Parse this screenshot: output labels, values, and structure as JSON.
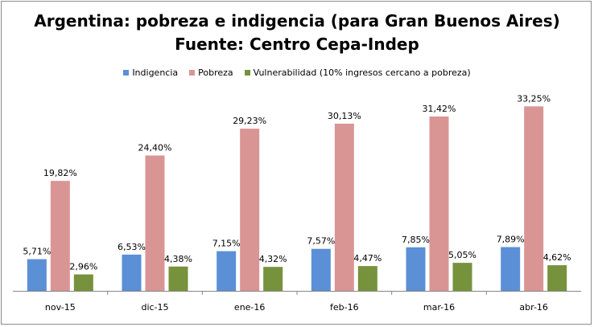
{
  "chart_data": {
    "type": "bar",
    "title": "Argentina: pobreza e indigencia (para Gran Buenos Aires)",
    "subtitle": "Fuente: Centro Cepa-Indep",
    "categories": [
      "nov-15",
      "dic-15",
      "ene-16",
      "feb-16",
      "mar-16",
      "abr-16"
    ],
    "series": [
      {
        "name": "Indigencia",
        "color": "#5b8fd6",
        "values": [
          5.71,
          6.53,
          7.15,
          7.57,
          7.85,
          7.89
        ],
        "labels": [
          "5,71%",
          "6,53%",
          "7,15%",
          "7,57%",
          "7,85%",
          "7,89%"
        ]
      },
      {
        "name": "Pobreza",
        "color": "#d99594",
        "values": [
          19.82,
          24.4,
          29.23,
          30.13,
          31.42,
          33.25
        ],
        "labels": [
          "19,82%",
          "24,40%",
          "29,23%",
          "30,13%",
          "31,42%",
          "33,25%"
        ]
      },
      {
        "name": "Vulnerabilidad (10% ingresos cercano a pobreza)",
        "color": "#76923c",
        "values": [
          2.96,
          4.38,
          4.32,
          4.47,
          5.05,
          4.62
        ],
        "labels": [
          "2,96%",
          "4,38%",
          "4,32%",
          "4,47%",
          "5,05%",
          "4,62%"
        ]
      }
    ],
    "legend_position": "top",
    "grid": false
  }
}
